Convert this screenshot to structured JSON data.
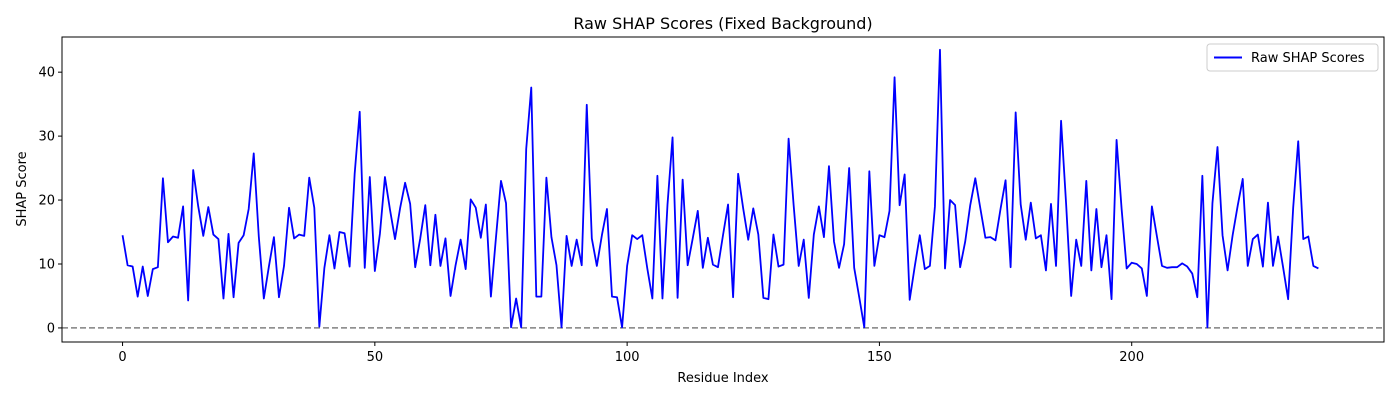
{
  "chart_data": {
    "type": "line",
    "title": "Raw SHAP Scores (Fixed Background)",
    "xlabel": "Residue Index",
    "ylabel": "SHAP Score",
    "xlim": [
      -12,
      250
    ],
    "ylim": [
      -2.2,
      45.5
    ],
    "xticks": [
      0,
      50,
      100,
      150,
      200
    ],
    "yticks": [
      0,
      10,
      20,
      30,
      40
    ],
    "grid": false,
    "legend": {
      "placement": "top-right",
      "entries": [
        "Raw SHAP Scores"
      ]
    },
    "colors": {
      "series": "#0000ff",
      "baseline": "#808080",
      "axes": "#000000"
    },
    "baseline": {
      "y": 0,
      "style": "dashed"
    },
    "series": [
      {
        "name": "Raw SHAP Scores",
        "x": [
          0,
          1,
          2,
          3,
          4,
          5,
          6,
          7,
          8,
          9,
          10,
          11,
          12,
          13,
          14,
          15,
          16,
          17,
          18,
          19,
          20,
          21,
          22,
          23,
          24,
          25,
          26,
          27,
          28,
          29,
          30,
          31,
          32,
          33,
          34,
          35,
          36,
          37,
          38,
          39,
          40,
          41,
          42,
          43,
          44,
          45,
          46,
          47,
          48,
          49,
          50,
          51,
          52,
          53,
          54,
          55,
          56,
          57,
          58,
          59,
          60,
          61,
          62,
          63,
          64,
          65,
          66,
          67,
          68,
          69,
          70,
          71,
          72,
          73,
          74,
          75,
          76,
          77,
          78,
          79,
          80,
          81,
          82,
          83,
          84,
          85,
          86,
          87,
          88,
          89,
          90,
          91,
          92,
          93,
          94,
          95,
          96,
          97,
          98,
          99,
          100,
          101,
          102,
          103,
          104,
          105,
          106,
          107,
          108,
          109,
          110,
          111,
          112,
          113,
          114,
          115,
          116,
          117,
          118,
          119,
          120,
          121,
          122,
          123,
          124,
          125,
          126,
          127,
          128,
          129,
          130,
          131,
          132,
          133,
          134,
          135,
          136,
          137,
          138,
          139,
          140,
          141,
          142,
          143,
          144,
          145,
          146,
          147,
          148,
          149,
          150,
          151,
          152,
          153,
          154,
          155,
          156,
          157,
          158,
          159,
          160,
          161,
          162,
          163,
          164,
          165,
          166,
          167,
          168,
          169,
          170,
          171,
          172,
          173,
          174,
          175,
          176,
          177,
          178,
          179,
          180,
          181,
          182,
          183,
          184,
          185,
          186,
          187,
          188,
          189,
          190,
          191,
          192,
          193,
          194,
          195,
          196,
          197,
          198,
          199,
          200,
          201,
          202,
          203,
          204,
          205,
          206,
          207,
          208,
          209,
          210,
          211,
          212,
          213,
          214,
          215,
          216,
          217,
          218,
          219,
          220,
          221,
          222,
          223,
          224,
          225,
          226,
          227,
          228,
          229,
          230,
          231,
          232,
          233,
          234,
          235,
          236,
          237
        ],
        "values": [
          14.5,
          9.8,
          9.6,
          4.9,
          9.6,
          5.0,
          9.2,
          9.5,
          23.4,
          13.4,
          14.3,
          14.1,
          19.0,
          4.3,
          24.7,
          19.0,
          14.4,
          18.9,
          14.6,
          13.9,
          4.6,
          14.7,
          4.8,
          13.3,
          14.5,
          18.6,
          27.3,
          14.3,
          4.6,
          9.6,
          14.2,
          4.8,
          9.7,
          18.8,
          14.0,
          14.6,
          14.4,
          23.5,
          18.8,
          0.2,
          9.4,
          14.5,
          9.3,
          15.0,
          14.8,
          9.6,
          24.1,
          33.8,
          9.4,
          23.6,
          8.9,
          14.7,
          23.6,
          18.5,
          13.9,
          18.7,
          22.7,
          19.4,
          9.5,
          14.0,
          19.2,
          9.8,
          17.7,
          9.7,
          14.0,
          5.0,
          9.8,
          13.8,
          9.2,
          20.1,
          18.8,
          14.1,
          19.3,
          4.9,
          14.1,
          23.0,
          19.5,
          0.1,
          4.6,
          0.1,
          28.0,
          37.6,
          4.9,
          4.9,
          23.5,
          14.2,
          9.8,
          0.1,
          14.4,
          9.7,
          13.8,
          9.8,
          34.9,
          14.0,
          9.7,
          14.5,
          18.6,
          4.9,
          4.8,
          0.1,
          9.7,
          14.5,
          13.9,
          14.5,
          9.3,
          4.6,
          23.8,
          4.6,
          19.3,
          29.8,
          4.7,
          23.2,
          9.8,
          14.0,
          18.3,
          9.4,
          14.1,
          9.9,
          9.5,
          14.5,
          19.3,
          4.8,
          24.1,
          18.7,
          13.8,
          18.7,
          14.6,
          4.7,
          4.5,
          14.6,
          9.6,
          9.9,
          29.6,
          19.2,
          9.7,
          13.8,
          4.7,
          14.6,
          19.0,
          14.2,
          25.3,
          13.5,
          9.4,
          13.1,
          25.0,
          9.4,
          4.8,
          0.1,
          24.5,
          9.7,
          14.5,
          14.2,
          18.3,
          39.2,
          19.2,
          24.0,
          4.4,
          9.6,
          14.5,
          9.2,
          9.7,
          19.0,
          43.5,
          9.3,
          20.0,
          19.2,
          9.5,
          13.5,
          19.2,
          23.4,
          18.7,
          14.1,
          14.2,
          13.7,
          18.6,
          23.1,
          9.5,
          33.7,
          19.3,
          13.8,
          19.6,
          14.0,
          14.5,
          9.0,
          19.4,
          9.7,
          32.4,
          19.4,
          5.0,
          13.8,
          9.7,
          23.0,
          9.0,
          18.6,
          9.5,
          14.5,
          4.5,
          29.4,
          18.6,
          9.3,
          10.2,
          10.0,
          9.3,
          5.0,
          19.0,
          14.3,
          9.7,
          9.4,
          9.5,
          9.5,
          10.1,
          9.6,
          8.5,
          4.8,
          23.8,
          0.1,
          19.5,
          28.3,
          14.5,
          9.0,
          14.5,
          19.1,
          23.3,
          9.7,
          13.9,
          14.6,
          9.6,
          19.6,
          9.7,
          14.3,
          9.5,
          4.5,
          18.8,
          29.2,
          13.9,
          14.3,
          9.7,
          9.3
        ]
      }
    ]
  }
}
